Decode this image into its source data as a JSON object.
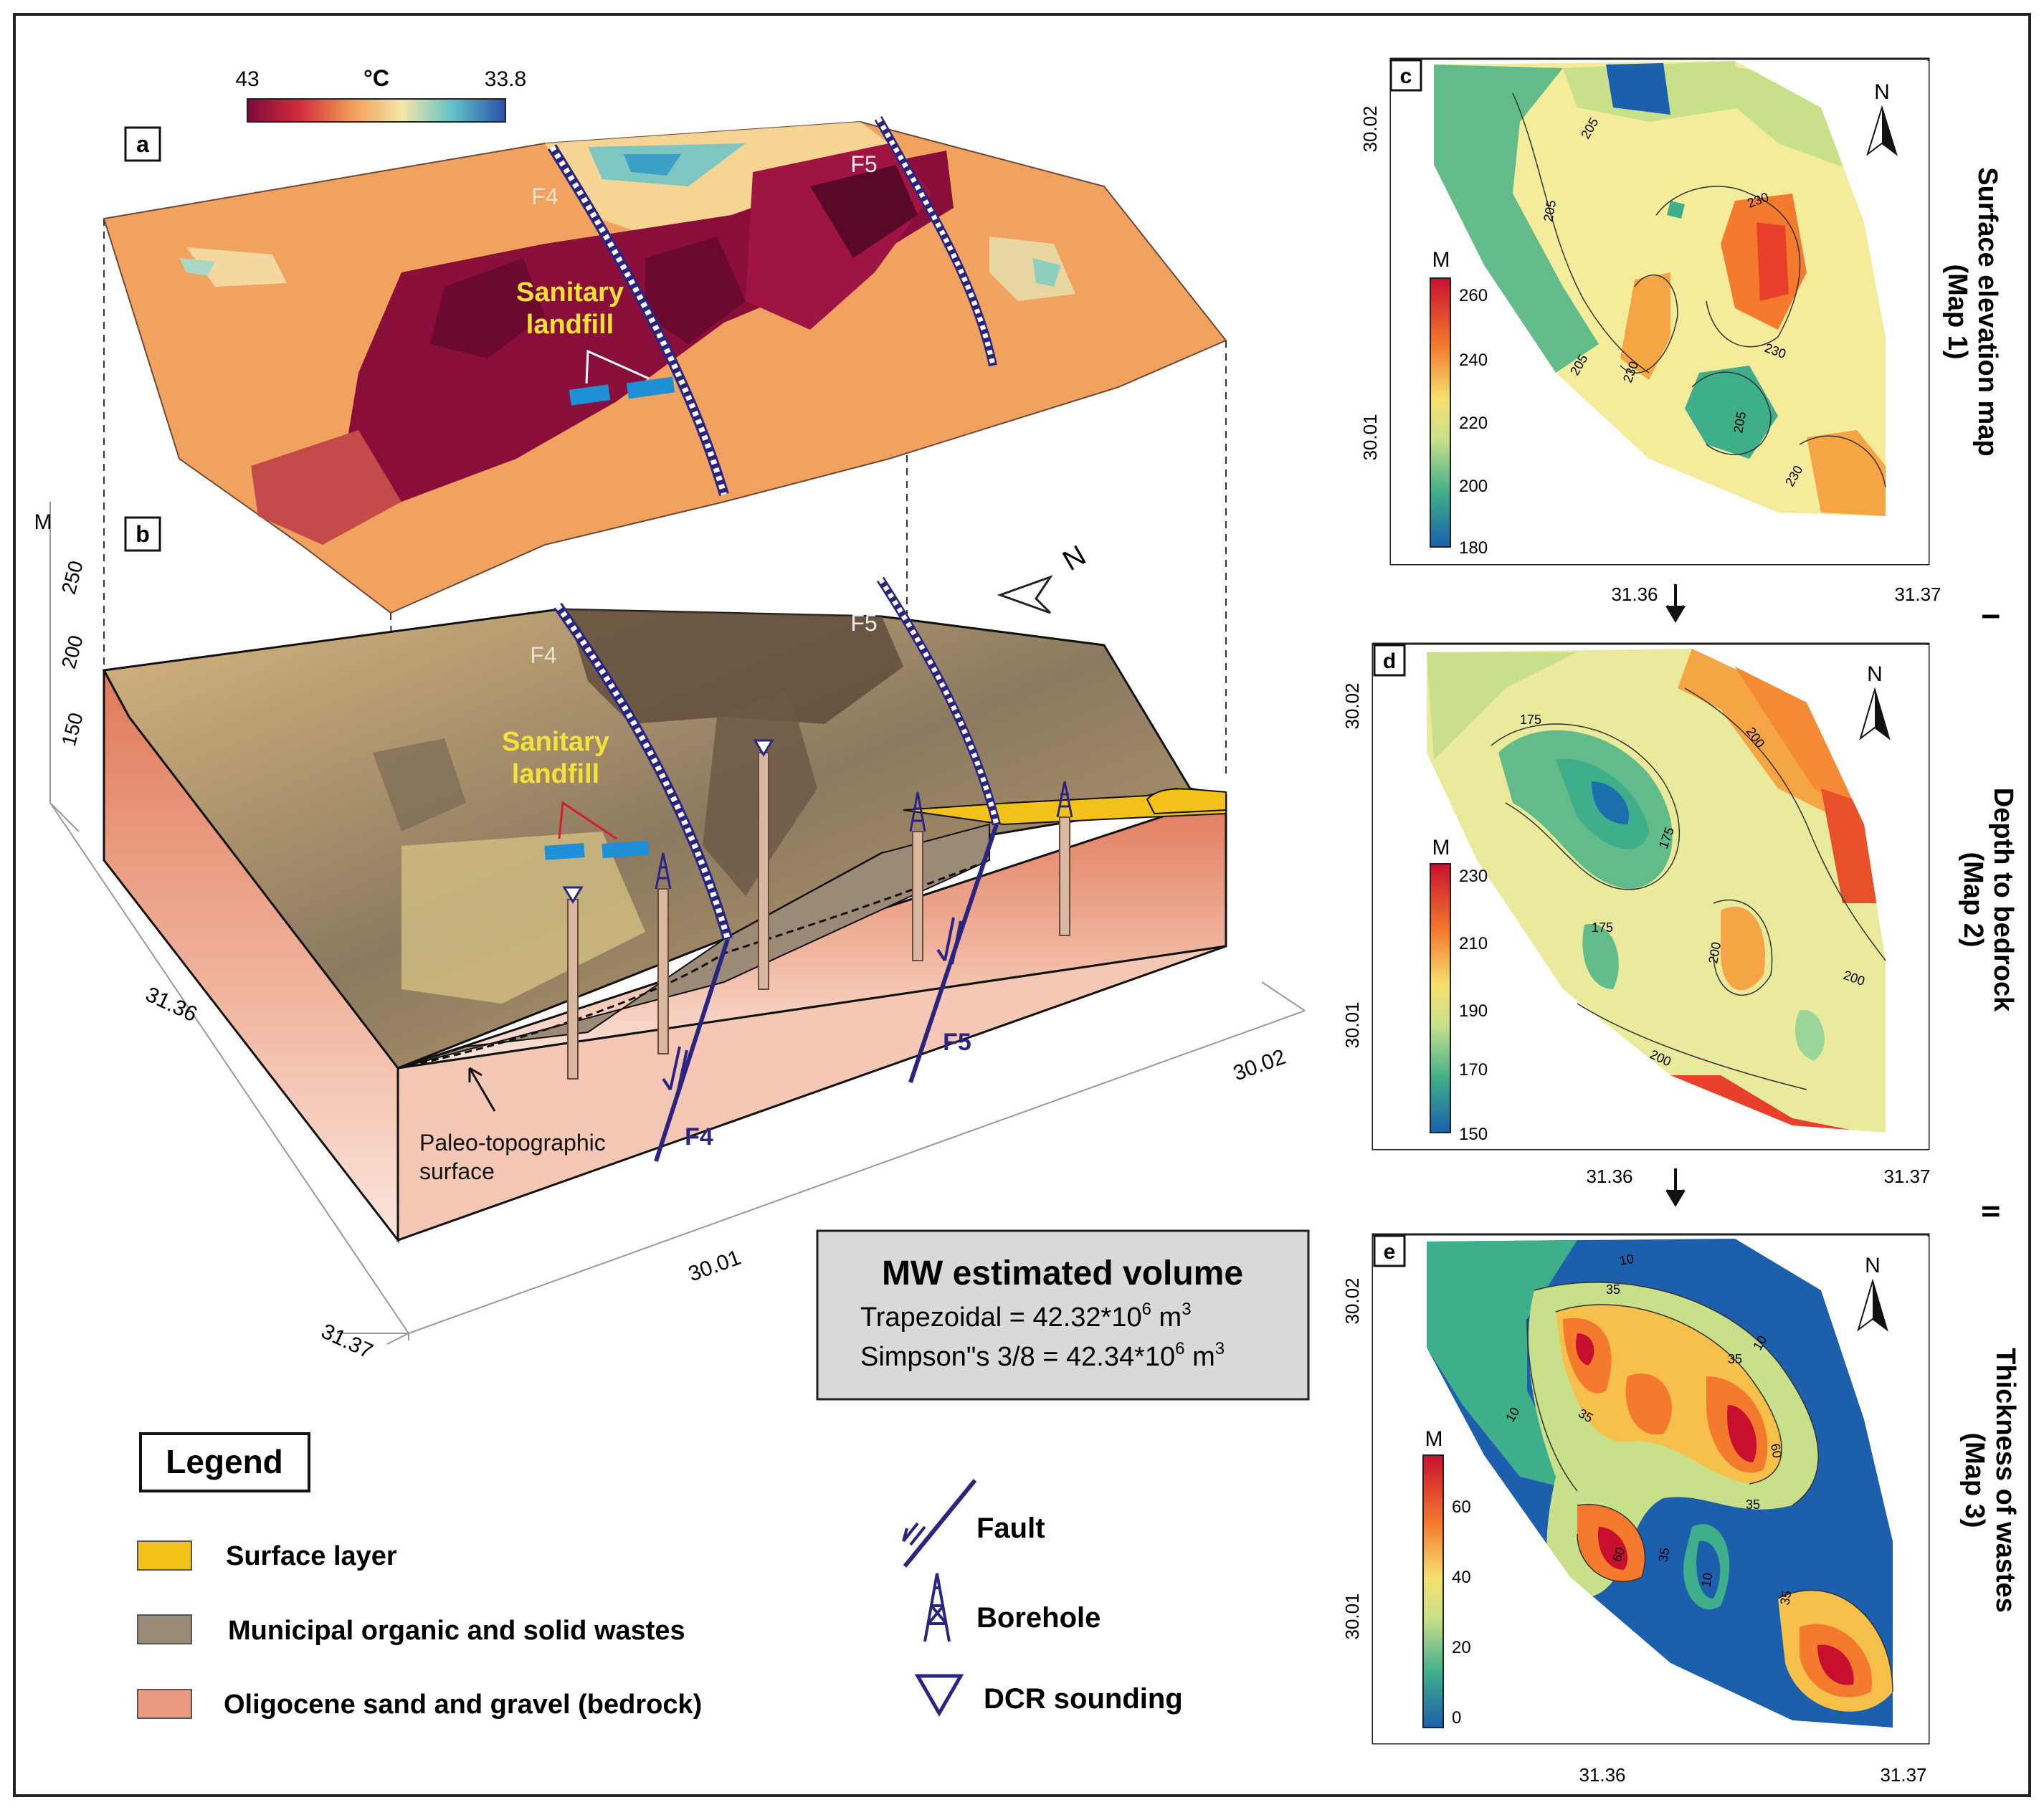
{
  "colorbar_3d": {
    "min_label": "43",
    "unit": "°C",
    "max_label": "33.8"
  },
  "panels": {
    "a": "a",
    "b": "b",
    "c": "c",
    "d": "d",
    "e": "e"
  },
  "block": {
    "f4": "F4",
    "f5": "F5",
    "landfill_line1": "Sanitary",
    "landfill_line2": "landfill",
    "paleo_line1": "Paleo-topographic",
    "paleo_line2": "surface",
    "axis_unit": "M",
    "z_ticks": [
      "250",
      "200",
      "150"
    ],
    "lon_ticks": [
      "31.36",
      "31.37"
    ],
    "lat_ticks": [
      "30.01",
      "30.02"
    ],
    "north": "N"
  },
  "volume": {
    "title": "MW estimated volume",
    "trap": "Trapezoidal = 42.32*10",
    "trap_exp": "6",
    "trap_unit": " m",
    "trap_unit_exp": "3",
    "simp": "Simpson\"s 3/8 = 42.34*10",
    "simp_exp": "6",
    "simp_unit": " m",
    "simp_unit_exp": "3"
  },
  "legend": {
    "title": "Legend",
    "items": [
      {
        "label": "Surface layer",
        "color": "#f2c21a"
      },
      {
        "label": "Municipal organic and solid wastes",
        "color": "#9a8a76"
      },
      {
        "label": "Oligocene sand and gravel (bedrock)",
        "color": "#e99a80"
      }
    ],
    "symbols": [
      "Fault",
      "Borehole",
      "DCR sounding"
    ]
  },
  "maps": [
    {
      "panel": "c",
      "title1": "Surface elevation map",
      "title2": "(Map 1)",
      "unit": "M",
      "scale": [
        "260",
        "240",
        "220",
        "200",
        "180"
      ],
      "contours": [
        "205",
        "205",
        "230",
        "230",
        "205",
        "230",
        "205",
        "230"
      ],
      "x_ticks": [
        "31.36",
        "31.37"
      ],
      "y_ticks": [
        "30.02",
        "30.01"
      ],
      "north": "N"
    },
    {
      "panel": "d",
      "title1": "Depth to bedrock",
      "title2": "(Map 2)",
      "unit": "M",
      "scale": [
        "230",
        "210",
        "190",
        "170",
        "150"
      ],
      "contours": [
        "175",
        "175",
        "200",
        "175",
        "200",
        "200",
        "200"
      ],
      "x_ticks": [
        "31.36",
        "31.37"
      ],
      "y_ticks": [
        "30.02",
        "30.01"
      ],
      "north": "N"
    },
    {
      "panel": "e",
      "title1": "Thickness of wastes",
      "title2": "(Map 3)",
      "unit": "M",
      "scale": [
        "60",
        "40",
        "20",
        "0"
      ],
      "contours": [
        "35",
        "10",
        "35",
        "10",
        "35",
        "60",
        "35",
        "60",
        "35",
        "10",
        "10",
        "35"
      ],
      "x_ticks": [
        "31.36",
        "31.37"
      ],
      "y_ticks": [
        "30.02",
        "30.01"
      ],
      "north": "N"
    }
  ],
  "roman": [
    "I",
    "II"
  ],
  "colors": {
    "fault": "#2a2580",
    "landfill": "#1f8fd6",
    "bedrock": "#e99a80",
    "waste": "#9a8a76",
    "surface": "#f2c21a"
  }
}
